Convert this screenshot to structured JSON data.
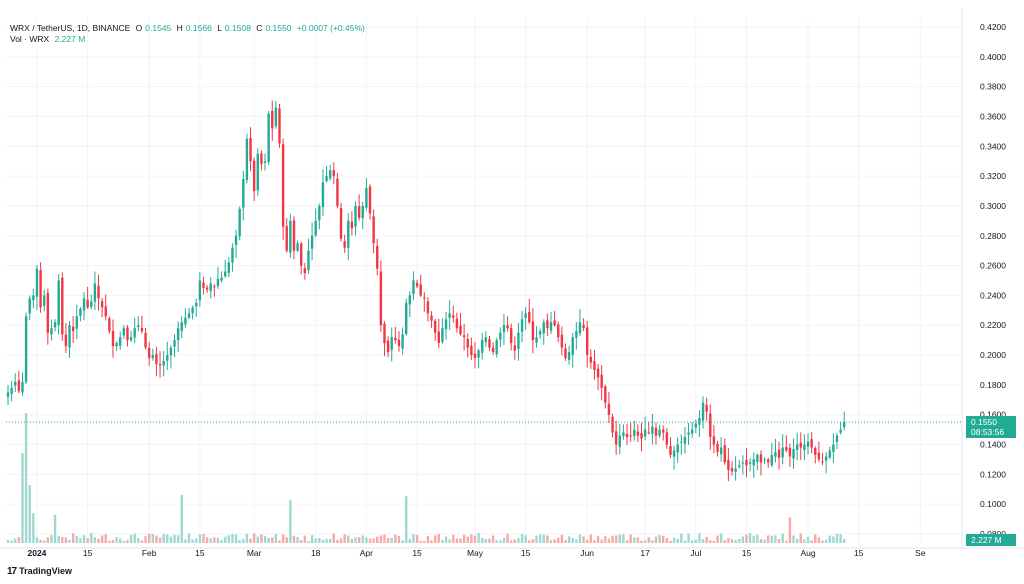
{
  "header": {
    "symbol": "WRX / TetherUS, 1D, BINANCE",
    "open_label": "O",
    "open": "0.1545",
    "high_label": "H",
    "high": "0.1566",
    "low_label": "L",
    "low": "0.1508",
    "close_label": "C",
    "close": "0.1550",
    "change": "+0.0007 (+0.45%)",
    "vol_label": "Vol · WRX",
    "vol_value": "2.227 M"
  },
  "price_tag": {
    "price": "0.1550",
    "countdown": "08:53:56"
  },
  "volume_tag": "2.227 M",
  "brand": {
    "logo": "17",
    "name": "TradingView"
  },
  "colors": {
    "up": "#22ab94",
    "down": "#f23645",
    "up_vol": "#9fd8cf",
    "down_vol": "#f7a9a7",
    "grid": "#f0f3fa"
  },
  "chart_data": {
    "type": "candlestick",
    "title": "WRX / TetherUS, 1D, BINANCE",
    "ylim": [
      0.08,
      0.42
    ],
    "y_ticks": [
      "0.4200",
      "0.4000",
      "0.3800",
      "0.3600",
      "0.3400",
      "0.3200",
      "0.3000",
      "0.2800",
      "0.2600",
      "0.2400",
      "0.2200",
      "0.2000",
      "0.1800",
      "0.1600",
      "0.1400",
      "0.1200",
      "0.1000",
      "0.0800"
    ],
    "x_ticks": [
      {
        "label": "2024",
        "day": 8,
        "bold": true
      },
      {
        "label": "15",
        "day": 22
      },
      {
        "label": "Feb",
        "day": 39
      },
      {
        "label": "15",
        "day": 53
      },
      {
        "label": "Mar",
        "day": 68
      },
      {
        "label": "18",
        "day": 85
      },
      {
        "label": "Apr",
        "day": 99
      },
      {
        "label": "15",
        "day": 113
      },
      {
        "label": "May",
        "day": 129
      },
      {
        "label": "15",
        "day": 143
      },
      {
        "label": "Jun",
        "day": 160
      },
      {
        "label": "17",
        "day": 176
      },
      {
        "label": "Jul",
        "day": 190
      },
      {
        "label": "15",
        "day": 204
      },
      {
        "label": "Aug",
        "day": 221
      },
      {
        "label": "15",
        "day": 235
      },
      {
        "label": "Se",
        "day": 252
      }
    ],
    "candles_start": 0,
    "closes": [
      0.175,
      0.178,
      0.182,
      0.176,
      0.182,
      0.226,
      0.238,
      0.24,
      0.258,
      0.232,
      0.24,
      0.215,
      0.218,
      0.222,
      0.25,
      0.214,
      0.206,
      0.22,
      0.216,
      0.226,
      0.231,
      0.238,
      0.232,
      0.236,
      0.248,
      0.238,
      0.232,
      0.226,
      0.216,
      0.206,
      0.208,
      0.212,
      0.218,
      0.21,
      0.212,
      0.218,
      0.22,
      0.216,
      0.205,
      0.198,
      0.2,
      0.194,
      0.193,
      0.196,
      0.2,
      0.205,
      0.21,
      0.218,
      0.222,
      0.225,
      0.228,
      0.232,
      0.235,
      0.25,
      0.245,
      0.244,
      0.248,
      0.246,
      0.251,
      0.252,
      0.256,
      0.262,
      0.272,
      0.28,
      0.298,
      0.318,
      0.345,
      0.33,
      0.31,
      0.335,
      0.328,
      0.33,
      0.362,
      0.352,
      0.366,
      0.342,
      0.286,
      0.27,
      0.29,
      0.27,
      0.275,
      0.26,
      0.255,
      0.27,
      0.28,
      0.29,
      0.3,
      0.316,
      0.32,
      0.324,
      0.32,
      0.3,
      0.278,
      0.272,
      0.29,
      0.285,
      0.3,
      0.292,
      0.3,
      0.312,
      0.295,
      0.275,
      0.258,
      0.22,
      0.208,
      0.202,
      0.212,
      0.21,
      0.206,
      0.214,
      0.235,
      0.24,
      0.25,
      0.246,
      0.24,
      0.238,
      0.228,
      0.223,
      0.215,
      0.208,
      0.218,
      0.224,
      0.228,
      0.225,
      0.218,
      0.214,
      0.212,
      0.205,
      0.2,
      0.198,
      0.203,
      0.21,
      0.212,
      0.205,
      0.202,
      0.21,
      0.215,
      0.22,
      0.218,
      0.208,
      0.203,
      0.215,
      0.224,
      0.228,
      0.222,
      0.21,
      0.212,
      0.216,
      0.222,
      0.218,
      0.222,
      0.22,
      0.212,
      0.205,
      0.198,
      0.202,
      0.212,
      0.216,
      0.222,
      0.218,
      0.2,
      0.195,
      0.19,
      0.185,
      0.178,
      0.168,
      0.16,
      0.148,
      0.14,
      0.146,
      0.148,
      0.145,
      0.146,
      0.15,
      0.146,
      0.144,
      0.15,
      0.148,
      0.152,
      0.146,
      0.15,
      0.148,
      0.14,
      0.133,
      0.136,
      0.14,
      0.142,
      0.145,
      0.148,
      0.15,
      0.154,
      0.158,
      0.168,
      0.162,
      0.145,
      0.14,
      0.135,
      0.138,
      0.128,
      0.123,
      0.122,
      0.124,
      0.126,
      0.128,
      0.126,
      0.128,
      0.13,
      0.133,
      0.128,
      0.13,
      0.128,
      0.133,
      0.135,
      0.131,
      0.138,
      0.136,
      0.132,
      0.137,
      0.14,
      0.138,
      0.14,
      0.142,
      0.138,
      0.133,
      0.13,
      0.128,
      0.132,
      0.136,
      0.14,
      0.146,
      0.15,
      0.155
    ],
    "volume_max": 1.0,
    "volume_spike_days": [
      4,
      5,
      6,
      7
    ],
    "current_price": 0.155,
    "current_volume": "2.227 M"
  }
}
